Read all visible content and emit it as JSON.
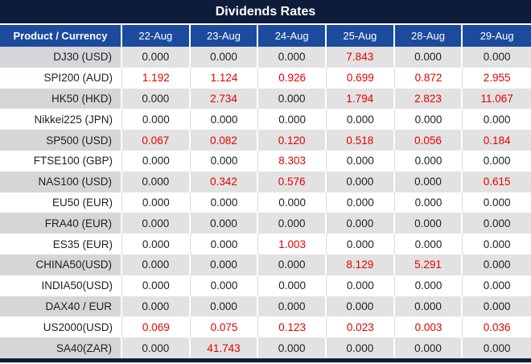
{
  "colors": {
    "title_bg": "#0d1c3a",
    "header_bg": "#1c4b9d",
    "row_alt_bg": "#e2e2e2",
    "row_alt_product_bg": "#d5d6d8",
    "value_red": "#e60000",
    "value_black": "#1f1f1f"
  },
  "chart_data": {
    "type": "table",
    "title": "Dividends Rates",
    "columns": [
      "Product / Currency",
      "22-Aug",
      "23-Aug",
      "24-Aug",
      "25-Aug",
      "28-Aug",
      "29-Aug"
    ],
    "rows": [
      {
        "product": "DJ30 (USD)",
        "values": [
          "0.000",
          "0.000",
          "0.000",
          "7.843",
          "0.000",
          "0.000"
        ]
      },
      {
        "product": "SPI200 (AUD)",
        "values": [
          "1.192",
          "1.124",
          "0.926",
          "0.699",
          "0.872",
          "2.955"
        ]
      },
      {
        "product": "HK50 (HKD)",
        "values": [
          "0.000",
          "2.734",
          "0.000",
          "1.794",
          "2.823",
          "11.067"
        ]
      },
      {
        "product": "Nikkei225 (JPN)",
        "values": [
          "0.000",
          "0.000",
          "0.000",
          "0.000",
          "0.000",
          "0.000"
        ]
      },
      {
        "product": "SP500 (USD)",
        "values": [
          "0.067",
          "0.082",
          "0.120",
          "0.518",
          "0.056",
          "0.184"
        ]
      },
      {
        "product": "FTSE100 (GBP)",
        "values": [
          "0.000",
          "0.000",
          "8.303",
          "0.000",
          "0.000",
          "0.000"
        ]
      },
      {
        "product": "NAS100 (USD)",
        "values": [
          "0.000",
          "0.342",
          "0.576",
          "0.000",
          "0.000",
          "0.615"
        ]
      },
      {
        "product": "EU50 (EUR)",
        "values": [
          "0.000",
          "0.000",
          "0.000",
          "0.000",
          "0.000",
          "0.000"
        ]
      },
      {
        "product": "FRA40 (EUR)",
        "values": [
          "0.000",
          "0.000",
          "0.000",
          "0.000",
          "0.000",
          "0.000"
        ]
      },
      {
        "product": "ES35 (EUR)",
        "values": [
          "0.000",
          "0.000",
          "1.003",
          "0.000",
          "0.000",
          "0.000"
        ]
      },
      {
        "product": "CHINA50(USD)",
        "values": [
          "0.000",
          "0.000",
          "0.000",
          "8.129",
          "5.291",
          "0.000"
        ]
      },
      {
        "product": "INDIA50(USD)",
        "values": [
          "0.000",
          "0.000",
          "0.000",
          "0.000",
          "0.000",
          "0.000"
        ]
      },
      {
        "product": "DAX40 / EUR",
        "values": [
          "0.000",
          "0.000",
          "0.000",
          "0.000",
          "0.000",
          "0.000"
        ]
      },
      {
        "product": "US2000(USD)",
        "values": [
          "0.069",
          "0.075",
          "0.123",
          "0.023",
          "0.003",
          "0.036"
        ]
      },
      {
        "product": "SA40(ZAR)",
        "values": [
          "0.000",
          "41.743",
          "0.000",
          "0.000",
          "0.000",
          "0.000"
        ]
      }
    ],
    "notes": "Non-zero rates rendered in red, zero rates in black. Alternating gray/white rows starting gray."
  }
}
